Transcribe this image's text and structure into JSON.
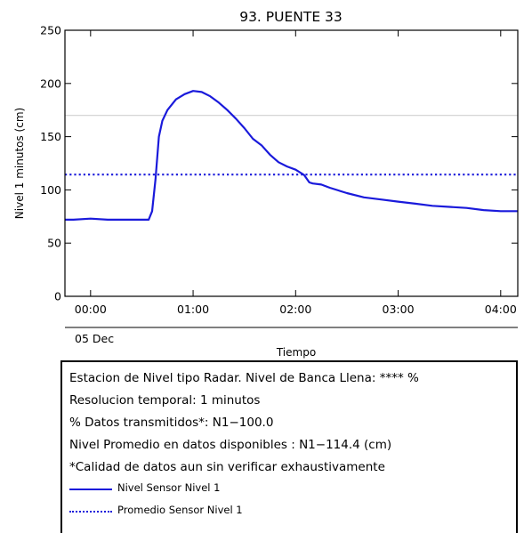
{
  "chart_data": {
    "type": "line",
    "title": "93. PUENTE 33",
    "xlabel": "Tiempo",
    "ylabel": "Nivel 1 minutos (cm)",
    "date_label": "05 Dec",
    "xlim": [
      "2023-12-04T23:45",
      "2023-12-05T04:10"
    ],
    "ylim": [
      0,
      250
    ],
    "x_ticks": [
      {
        "time": "2023-12-05T00:00",
        "label": "00:00"
      },
      {
        "time": "2023-12-05T01:00",
        "label": "01:00"
      },
      {
        "time": "2023-12-05T02:00",
        "label": "02:00"
      },
      {
        "time": "2023-12-05T03:00",
        "label": "03:00"
      },
      {
        "time": "2023-12-05T04:00",
        "label": "04:00"
      }
    ],
    "y_ticks": [
      0,
      50,
      100,
      150,
      200,
      250
    ],
    "banca_llena_line": 170,
    "series": [
      {
        "name": "Nivel Sensor Nivel 1",
        "style": "solid",
        "color": "#1a1adb",
        "x": [
          "2023-12-04T23:45",
          "2023-12-04T23:50",
          "2023-12-05T00:00",
          "2023-12-05T00:10",
          "2023-12-05T00:20",
          "2023-12-05T00:30",
          "2023-12-05T00:34",
          "2023-12-05T00:36",
          "2023-12-05T00:38",
          "2023-12-05T00:40",
          "2023-12-05T00:42",
          "2023-12-05T00:45",
          "2023-12-05T00:50",
          "2023-12-05T00:55",
          "2023-12-05T01:00",
          "2023-12-05T01:05",
          "2023-12-05T01:10",
          "2023-12-05T01:15",
          "2023-12-05T01:20",
          "2023-12-05T01:25",
          "2023-12-05T01:30",
          "2023-12-05T01:35",
          "2023-12-05T01:40",
          "2023-12-05T01:45",
          "2023-12-05T01:50",
          "2023-12-05T01:55",
          "2023-12-05T02:00",
          "2023-12-05T02:05",
          "2023-12-05T02:08",
          "2023-12-05T02:10",
          "2023-12-05T02:15",
          "2023-12-05T02:20",
          "2023-12-05T02:30",
          "2023-12-05T02:40",
          "2023-12-05T02:50",
          "2023-12-05T03:00",
          "2023-12-05T03:10",
          "2023-12-05T03:20",
          "2023-12-05T03:30",
          "2023-12-05T03:40",
          "2023-12-05T03:50",
          "2023-12-05T04:00",
          "2023-12-05T04:10"
        ],
        "y": [
          72,
          72,
          73,
          72,
          72,
          72,
          72,
          80,
          110,
          150,
          165,
          175,
          185,
          190,
          193,
          192,
          188,
          182,
          175,
          167,
          158,
          148,
          142,
          133,
          126,
          122,
          119,
          114,
          107,
          106,
          105,
          102,
          97,
          93,
          91,
          89,
          87,
          85,
          84,
          83,
          81,
          80,
          80
        ]
      },
      {
        "name": "Promedio Sensor Nivel 1",
        "style": "dotted",
        "color": "#1a1adb",
        "constant": 114.4
      }
    ]
  },
  "legend": {
    "lines": [
      "Estacion de Nivel tipo Radar. Nivel de Banca Llena: **** %",
      "Resolucion temporal: 1 minutos",
      "% Datos transmitidos*: N1−100.0",
      "Nivel Promedio en datos disponibles : N1−114.4 (cm)",
      "*Calidad de datos aun sin verificar exhaustivamente"
    ],
    "entries": [
      {
        "label": "Nivel Sensor Nivel 1",
        "style": "solid"
      },
      {
        "label": "Promedio Sensor Nivel 1",
        "style": "dotted"
      }
    ]
  }
}
